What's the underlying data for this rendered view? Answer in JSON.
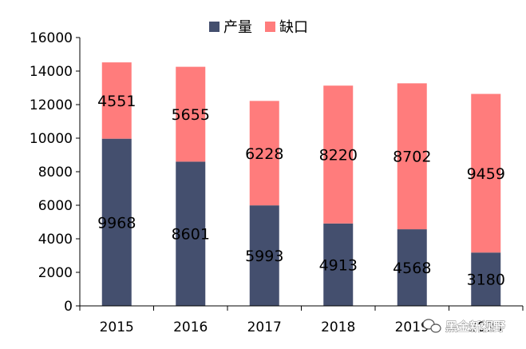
{
  "chart_data": {
    "type": "bar",
    "stacked": true,
    "categories": [
      "2015",
      "2016",
      "2017",
      "2018",
      "2019",
      "2020"
    ],
    "series": [
      {
        "name": "产量",
        "values": [
          9968,
          8601,
          5993,
          4913,
          4568,
          3180
        ],
        "color": "#444f6e"
      },
      {
        "name": "缺口",
        "values": [
          4551,
          5655,
          6228,
          8220,
          8702,
          9459
        ],
        "color": "#ff7c7c"
      }
    ],
    "ylim": [
      0,
      16000
    ],
    "yticks": [
      0,
      2000,
      4000,
      6000,
      8000,
      10000,
      12000,
      14000,
      16000
    ],
    "legend_position": "top",
    "grid": false,
    "data_labels": true
  },
  "watermark": {
    "text": "黑金新视野"
  }
}
